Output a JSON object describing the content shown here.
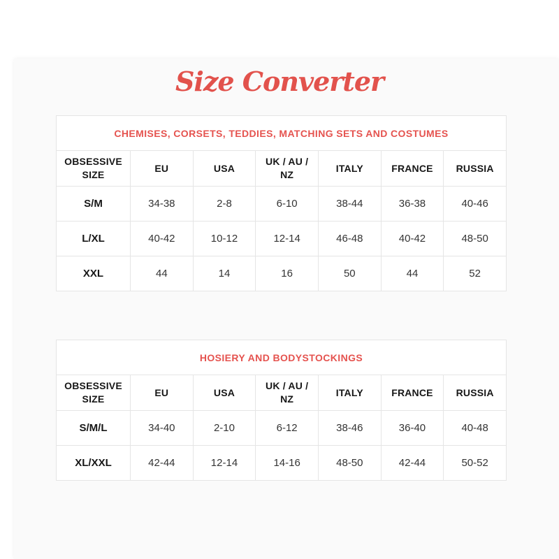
{
  "page": {
    "title": "Size Converter",
    "accent_color": "#e2524c",
    "banner_text_color": "#e5534f",
    "panel_background": "#fafafa",
    "table_border_color": "#e5e5e5"
  },
  "tables": [
    {
      "title": "CHEMISES, CORSETS, TEDDIES, MATCHING SETS AND COSTUMES",
      "columns": [
        "OBSESSIVE SIZE",
        "EU",
        "USA",
        "UK / AU / NZ",
        "ITALY",
        "FRANCE",
        "RUSSIA"
      ],
      "rows": [
        [
          "S/M",
          "34-38",
          "2-8",
          "6-10",
          "38-44",
          "36-38",
          "40-46"
        ],
        [
          "L/XL",
          "40-42",
          "10-12",
          "12-14",
          "46-48",
          "40-42",
          "48-50"
        ],
        [
          "XXL",
          "44",
          "14",
          "16",
          "50",
          "44",
          "52"
        ]
      ]
    },
    {
      "title": "HOSIERY AND BODYSTOCKINGS",
      "columns": [
        "OBSESSIVE SIZE",
        "EU",
        "USA",
        "UK / AU / NZ",
        "ITALY",
        "FRANCE",
        "RUSSIA"
      ],
      "rows": [
        [
          "S/M/L",
          "34-40",
          "2-10",
          "6-12",
          "38-46",
          "36-40",
          "40-48"
        ],
        [
          "XL/XXL",
          "42-44",
          "12-14",
          "14-16",
          "48-50",
          "42-44",
          "50-52"
        ]
      ]
    }
  ]
}
